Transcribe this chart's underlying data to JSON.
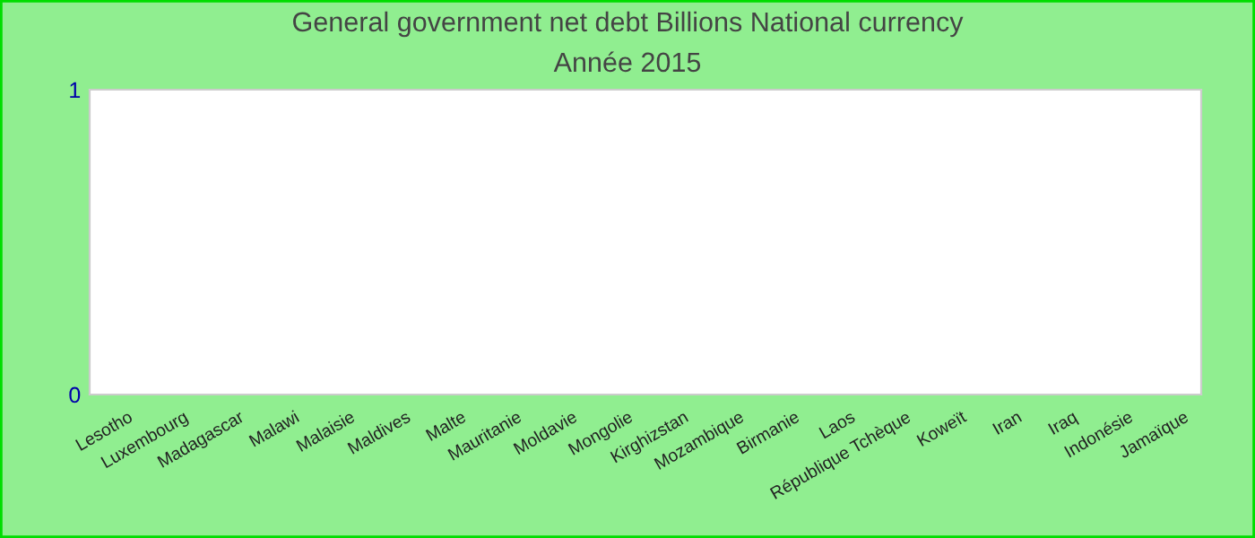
{
  "chart_data": {
    "type": "bar",
    "title": "General government net debt Billions National currency",
    "subtitle": "Année 2015",
    "categories": [
      "Lesotho",
      "Luxembourg",
      "Madagascar",
      "Malawi",
      "Malaisie",
      "Maldives",
      "Malte",
      "Mauritanie",
      "Moldavie",
      "Mongolie",
      "Kirghizstan",
      "Mozambique",
      "Birmanie",
      "Laos",
      "République Tchèque",
      "Koweït",
      "Iran",
      "Iraq",
      "Indonésie",
      "Jamaïque"
    ],
    "values": [
      null,
      null,
      null,
      null,
      null,
      null,
      null,
      null,
      null,
      null,
      null,
      null,
      null,
      null,
      null,
      null,
      null,
      null,
      null,
      null
    ],
    "ylim": [
      0,
      1
    ],
    "yticks": [
      0,
      1
    ],
    "grid": false,
    "legend": false
  }
}
